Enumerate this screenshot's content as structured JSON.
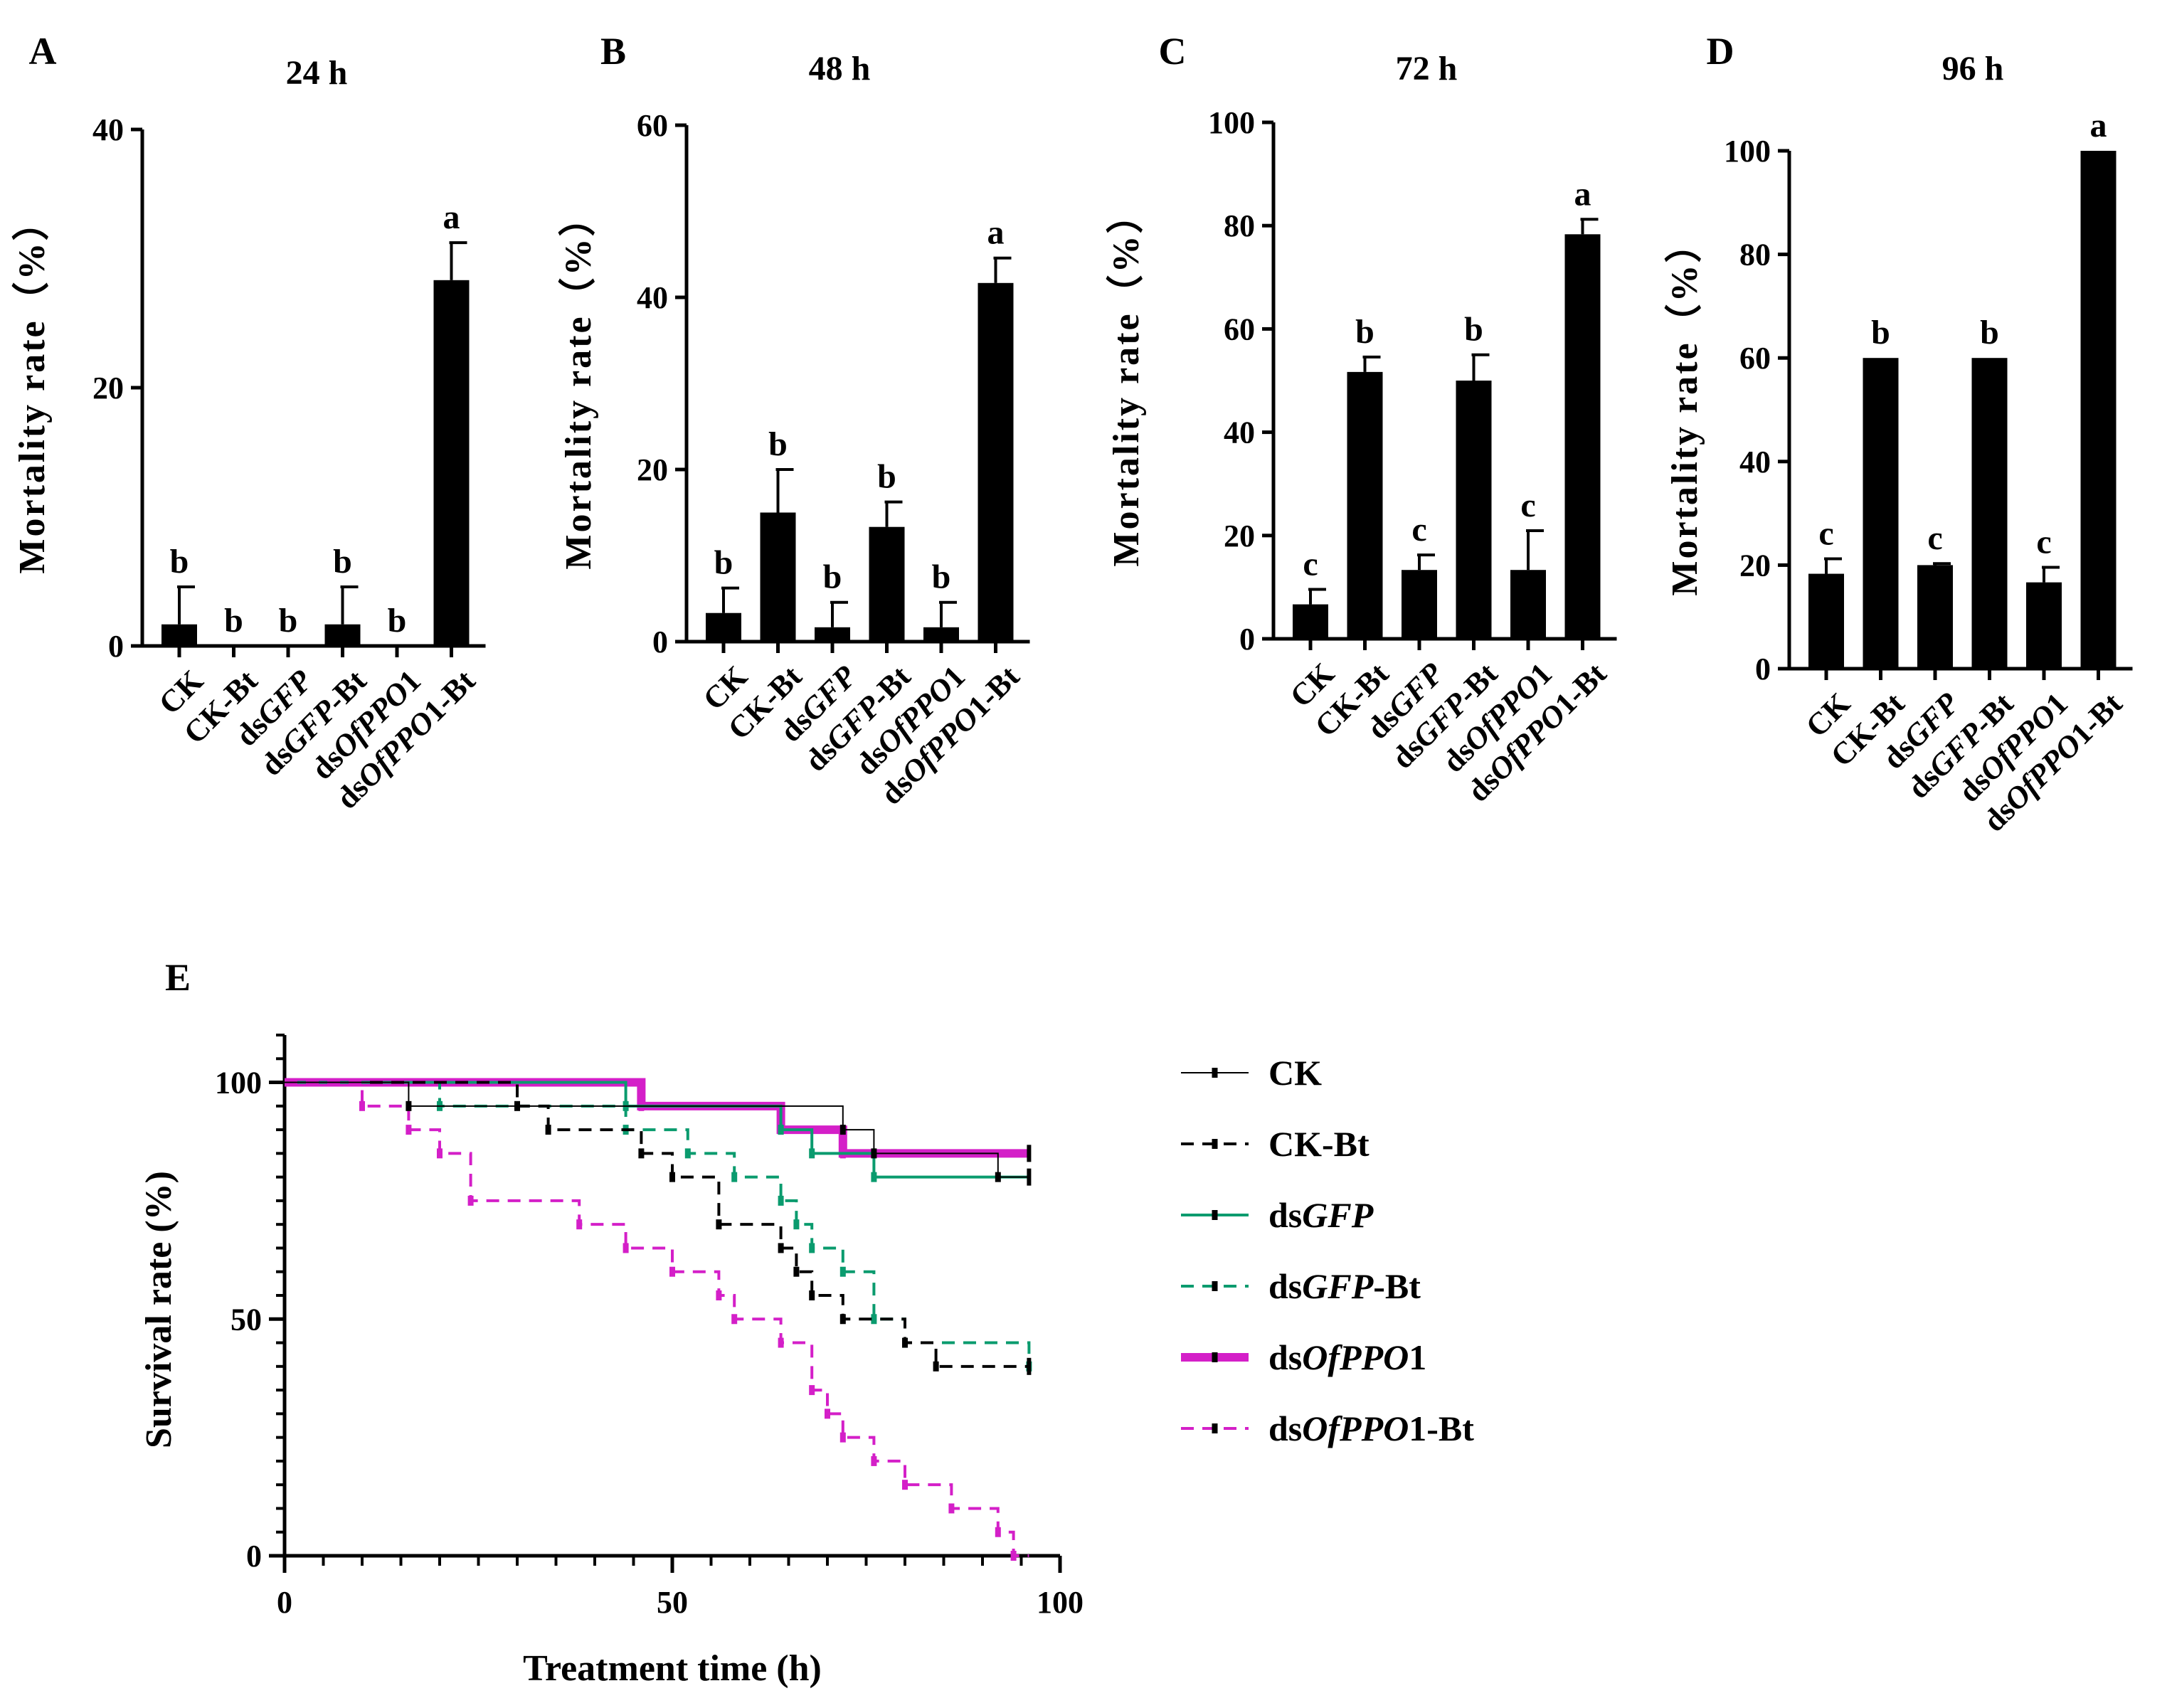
{
  "chart_data": [
    {
      "type": "bar",
      "panel_label": "A",
      "title": "24 h",
      "ylabel": "Mortality rate（%）",
      "ylim": [
        0,
        40
      ],
      "yticks": [
        "0",
        "20",
        "40"
      ],
      "categories": [
        {
          "pre": "CK",
          "it": "",
          "post": ""
        },
        {
          "pre": "CK-Bt",
          "it": "",
          "post": ""
        },
        {
          "pre": "ds",
          "it": "GFP",
          "post": ""
        },
        {
          "pre": "ds",
          "it": "GFP",
          "post": "-Bt"
        },
        {
          "pre": "ds",
          "it": "OfPPO",
          "post": "1"
        },
        {
          "pre": "ds",
          "it": "OfPPO",
          "post": "1-Bt"
        }
      ],
      "values": [
        1.67,
        0,
        0,
        1.67,
        0,
        28.33
      ],
      "errors": [
        2.9,
        0,
        0,
        2.9,
        0,
        2.9
      ],
      "letters": [
        "b",
        "b",
        "b",
        "b",
        "b",
        "a"
      ]
    },
    {
      "type": "bar",
      "panel_label": "B",
      "title": "48 h",
      "ylabel": "Mortality rate（%）",
      "ylim": [
        0,
        60
      ],
      "yticks": [
        "0",
        "20",
        "40",
        "60"
      ],
      "categories": [
        {
          "pre": "CK",
          "it": "",
          "post": ""
        },
        {
          "pre": "CK-Bt",
          "it": "",
          "post": ""
        },
        {
          "pre": "ds",
          "it": "GFP",
          "post": ""
        },
        {
          "pre": "ds",
          "it": "GFP",
          "post": "-Bt"
        },
        {
          "pre": "ds",
          "it": "OfPPO",
          "post": "1"
        },
        {
          "pre": "ds",
          "it": "OfPPO",
          "post": "1-Bt"
        }
      ],
      "values": [
        3.33,
        15,
        1.67,
        13.33,
        1.67,
        41.67
      ],
      "errors": [
        2.9,
        5.0,
        2.9,
        2.9,
        2.9,
        2.9
      ],
      "letters": [
        "b",
        "b",
        "b",
        "b",
        "b",
        "a"
      ]
    },
    {
      "type": "bar",
      "panel_label": "C",
      "title": "72 h",
      "ylabel": "Mortality rate（%）",
      "ylim": [
        0,
        100
      ],
      "yticks": [
        "0",
        "20",
        "40",
        "60",
        "80",
        "100"
      ],
      "categories": [
        {
          "pre": "CK",
          "it": "",
          "post": ""
        },
        {
          "pre": "CK-Bt",
          "it": "",
          "post": ""
        },
        {
          "pre": "ds",
          "it": "GFP",
          "post": ""
        },
        {
          "pre": "ds",
          "it": "GFP",
          "post": "-Bt"
        },
        {
          "pre": "ds",
          "it": "OfPPO",
          "post": "1"
        },
        {
          "pre": "ds",
          "it": "OfPPO",
          "post": "1-Bt"
        }
      ],
      "values": [
        6.67,
        51.67,
        13.33,
        50,
        13.33,
        78.33
      ],
      "errors": [
        2.9,
        2.9,
        2.9,
        5.0,
        7.6,
        2.9
      ],
      "letters": [
        "c",
        "b",
        "c",
        "b",
        "c",
        "a"
      ]
    },
    {
      "type": "bar",
      "panel_label": "D",
      "title": "96 h",
      "ylabel": "Mortality rate（%）",
      "ylim": [
        0,
        100
      ],
      "yticks": [
        "0",
        "20",
        "40",
        "60",
        "80",
        "100"
      ],
      "categories": [
        {
          "pre": "CK",
          "it": "",
          "post": ""
        },
        {
          "pre": "CK-Bt",
          "it": "",
          "post": ""
        },
        {
          "pre": "ds",
          "it": "GFP",
          "post": ""
        },
        {
          "pre": "ds",
          "it": "GFP",
          "post": "-Bt"
        },
        {
          "pre": "ds",
          "it": "OfPPO",
          "post": "1"
        },
        {
          "pre": "ds",
          "it": "OfPPO",
          "post": "1-Bt"
        }
      ],
      "values": [
        18.33,
        60,
        20,
        60,
        16.67,
        100
      ],
      "errors": [
        2.9,
        0,
        0.3,
        0,
        2.9,
        0
      ],
      "letters": [
        "c",
        "b",
        "c",
        "b",
        "c",
        "a"
      ]
    },
    {
      "type": "line",
      "subtype": "survival-step",
      "panel_label": "E",
      "xlabel": "Treatment time (h)",
      "ylabel": "Survival rate (%)",
      "xlim": [
        0,
        100
      ],
      "ylim": [
        0,
        110
      ],
      "xticks": [
        "0",
        "50",
        "100"
      ],
      "yticks": [
        "0",
        "50",
        "100"
      ],
      "series": [
        {
          "pre": "CK",
          "it": "",
          "post": "",
          "color": "#000000",
          "dashed": false,
          "width": 2,
          "x": [
            0,
            16,
            44,
            64,
            72,
            76,
            92,
            96
          ],
          "y": [
            100,
            95,
            95,
            95,
            90,
            85,
            80,
            80
          ],
          "censor": []
        },
        {
          "pre": "CK-Bt",
          "it": "",
          "post": "",
          "color": "#000000",
          "dashed": true,
          "width": 4,
          "x": [
            0,
            30,
            34,
            46,
            50,
            56,
            64,
            66,
            68,
            72,
            80,
            84,
            96
          ],
          "y": [
            100,
            95,
            90,
            85,
            80,
            70,
            65,
            60,
            55,
            50,
            45,
            40,
            40
          ],
          "censor": [
            [
              96,
              40
            ]
          ]
        },
        {
          "pre": "ds",
          "it": "GFP",
          "post": "",
          "color": "#0a9b6e",
          "dashed": false,
          "width": 4,
          "x": [
            0,
            44,
            48,
            64,
            68,
            76,
            96
          ],
          "y": [
            100,
            95,
            95,
            90,
            85,
            80,
            80
          ],
          "censor": [
            [
              96,
              80
            ]
          ]
        },
        {
          "pre": "ds",
          "it": "GFP",
          "post": "-Bt",
          "color": "#0a9b6e",
          "dashed": true,
          "width": 4,
          "x": [
            0,
            20,
            44,
            52,
            58,
            64,
            66,
            68,
            72,
            76,
            80,
            96
          ],
          "y": [
            100,
            95,
            90,
            85,
            80,
            75,
            70,
            65,
            60,
            50,
            45,
            40
          ],
          "censor": []
        },
        {
          "pre": "ds",
          "it": "OfPPO",
          "post": "1",
          "color": "#d41fc8",
          "dashed": false,
          "width": 12,
          "x": [
            0,
            46,
            64,
            72,
            96
          ],
          "y": [
            100,
            95,
            90,
            85,
            85
          ],
          "censor": [
            [
              96,
              85
            ]
          ]
        },
        {
          "pre": "ds",
          "it": "OfPPO",
          "post": "1-Bt",
          "color": "#d41fc8",
          "dashed": true,
          "width": 4,
          "x": [
            0,
            10,
            16,
            20,
            24,
            38,
            44,
            50,
            56,
            58,
            64,
            68,
            70,
            72,
            76,
            80,
            86,
            92,
            94,
            96
          ],
          "y": [
            100,
            95,
            90,
            85,
            75,
            70,
            65,
            60,
            55,
            50,
            45,
            35,
            30,
            25,
            20,
            15,
            10,
            5,
            0,
            0
          ],
          "censor": []
        }
      ]
    }
  ]
}
